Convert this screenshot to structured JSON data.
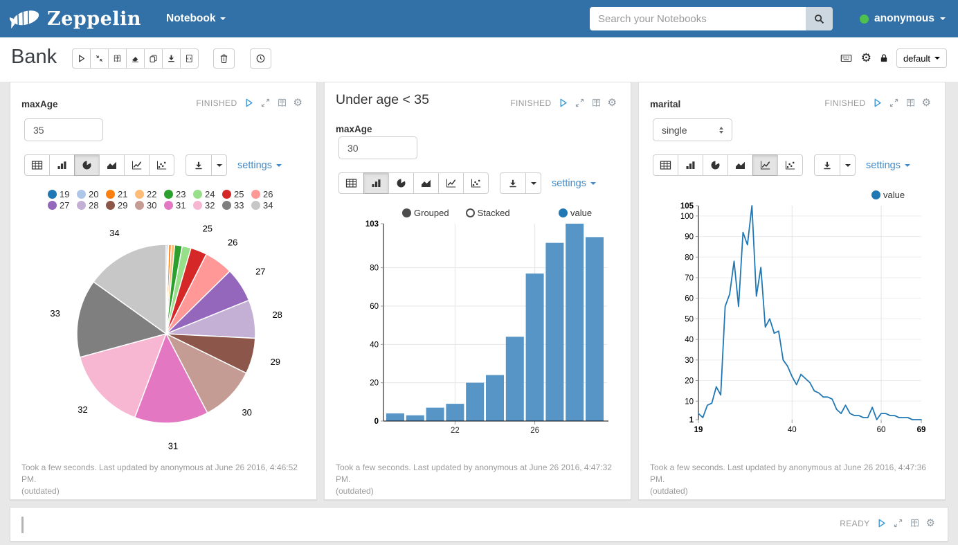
{
  "navbar": {
    "brand": "Zeppelin",
    "menu_notebook": "Notebook",
    "search_placeholder": "Search your Notebooks",
    "user": "anonymous"
  },
  "page_header": {
    "title": "Bank",
    "toolbar_icons": [
      "run-all",
      "hide-code",
      "hide-output",
      "clear-output",
      "clone-notebook",
      "export-notebook",
      "commit-notebook"
    ],
    "trash_icon": "trash",
    "scheduler_icon": "clock",
    "right_icons": [
      "keyboard-shortcuts",
      "interpreter-settings",
      "permissions-lock"
    ],
    "interpreter_label": "default"
  },
  "chart_types": [
    "table",
    "bar-chart",
    "pie-chart",
    "area-chart",
    "line-chart",
    "scatter-chart"
  ],
  "colors": {
    "navbar_bg": "#3270a8",
    "accent_link": "#428bca",
    "status_green": "#4dc04d",
    "bar_fill": "#5795c6",
    "line_stroke": "#1f77b4",
    "value_dot": "#1f77b4"
  },
  "paragraphs": [
    {
      "form_label": "maxAge",
      "input_value": "35",
      "status": "FINISHED",
      "settings_label": "settings",
      "selected_chart_index": 2,
      "footer_line1": "Took a few seconds. Last updated by anonymous at June 26 2016, 4:46:52 PM.",
      "footer_line2": "(outdated)",
      "chart_data": {
        "type": "pie",
        "categories": [
          "19",
          "20",
          "21",
          "22",
          "23",
          "24",
          "25",
          "26",
          "27",
          "28",
          "29",
          "30",
          "31",
          "32",
          "33",
          "34"
        ],
        "values": [
          4,
          3,
          7,
          9,
          20,
          24,
          44,
          77,
          93,
          103,
          96,
          150,
          199,
          224,
          210,
          225
        ],
        "colors": [
          "#1f77b4",
          "#aec7e8",
          "#ff7f0e",
          "#ffbb78",
          "#2ca02c",
          "#98df8a",
          "#d62728",
          "#ff9896",
          "#9467bd",
          "#c5b0d5",
          "#8c564b",
          "#c49c94",
          "#e377c2",
          "#f7b6d2",
          "#7f7f7f",
          "#c7c7c7"
        ],
        "label_min_fraction": 0.025,
        "legend_position": "top"
      }
    },
    {
      "title": "Under age < 35",
      "form_label": "maxAge",
      "input_value": "30",
      "status": "FINISHED",
      "settings_label": "settings",
      "selected_chart_index": 1,
      "bar_modes": {
        "options": [
          "Grouped",
          "Stacked"
        ],
        "selected": "Grouped"
      },
      "series_label": "value",
      "footer_line1": "Took a few seconds. Last updated by anonymous at June 26 2016, 4:47:32 PM.",
      "footer_line2": "(outdated)",
      "chart_data": {
        "type": "bar",
        "categories": [
          19,
          20,
          21,
          22,
          23,
          24,
          25,
          26,
          27,
          28,
          29
        ],
        "values": [
          4,
          3,
          7,
          9,
          20,
          24,
          44,
          77,
          93,
          103,
          96
        ],
        "series": [
          {
            "name": "value"
          }
        ],
        "x_ticks": [
          22,
          26
        ],
        "y_ticks": [
          0,
          20,
          40,
          60,
          80
        ],
        "y_max_label": 103,
        "ylim": [
          0,
          103
        ],
        "grid": true
      }
    },
    {
      "form_label": "marital",
      "select_value": "single",
      "status": "FINISHED",
      "settings_label": "settings",
      "selected_chart_index": 4,
      "series_label": "value",
      "footer_line1": "Took a few seconds. Last updated by anonymous at June 26 2016, 4:47:36 PM.",
      "footer_line2": "(outdated)",
      "chart_data": {
        "type": "line",
        "x": [
          19,
          20,
          21,
          22,
          23,
          24,
          25,
          26,
          27,
          28,
          29,
          30,
          31,
          32,
          33,
          34,
          35,
          36,
          37,
          38,
          39,
          40,
          41,
          42,
          43,
          44,
          45,
          46,
          47,
          48,
          49,
          50,
          51,
          52,
          53,
          54,
          55,
          56,
          57,
          58,
          59,
          60,
          61,
          62,
          63,
          64,
          65,
          66,
          67,
          68,
          69
        ],
        "values": [
          4,
          2,
          8,
          9,
          17,
          13,
          56,
          62,
          78,
          56,
          92,
          86,
          105,
          61,
          75,
          46,
          50,
          43,
          44,
          30,
          27,
          22,
          18,
          23,
          21,
          19,
          15,
          14,
          12,
          12,
          11,
          6,
          4,
          8,
          4,
          3,
          3,
          2,
          2,
          7,
          1,
          4,
          4,
          3,
          3,
          2,
          2,
          2,
          1,
          1,
          1
        ],
        "series": [
          {
            "name": "value"
          }
        ],
        "x_ticks": [
          19,
          40,
          60,
          69
        ],
        "y_ticks": [
          1,
          10,
          20,
          30,
          40,
          50,
          60,
          70,
          80,
          90,
          100,
          105
        ],
        "ylim": [
          1,
          105
        ],
        "xlim": [
          19,
          69
        ],
        "grid": true
      }
    }
  ],
  "empty_paragraph": {
    "status": "READY"
  }
}
